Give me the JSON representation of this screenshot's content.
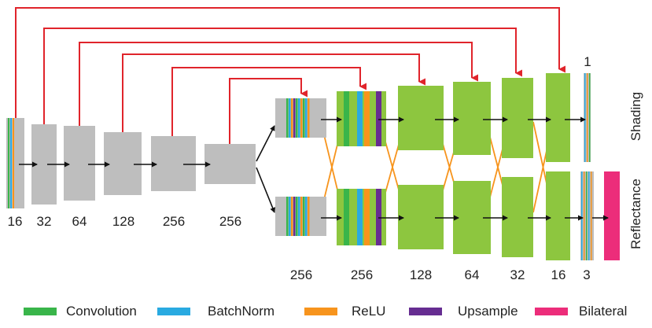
{
  "colors": {
    "encoder_block": "#bebebe",
    "decoder_block": "#8dc63f",
    "skip_arrow": "#e0242b",
    "cross_connection": "#f7941d",
    "flow_arrow": "#111111",
    "convolution": "#39b54a",
    "batchnorm": "#29aae1",
    "relu": "#f7941d",
    "upsample": "#662d91",
    "bilateral": "#ec2d7a"
  },
  "encoder_labels": [
    "16",
    "32",
    "64",
    "128",
    "256",
    "256"
  ],
  "decoder_labels": [
    "256",
    "256",
    "128",
    "64",
    "32",
    "16",
    "3"
  ],
  "shading_output_label": "1",
  "branch_labels": {
    "shading": "Shading",
    "reflectance": "Reflectance"
  },
  "legend": [
    {
      "label": "Convolution",
      "color_key": "convolution"
    },
    {
      "label": "BatchNorm",
      "color_key": "batchnorm"
    },
    {
      "label": "ReLU",
      "color_key": "relu"
    },
    {
      "label": "Upsample",
      "color_key": "upsample"
    },
    {
      "label": "Bilateral",
      "color_key": "bilateral"
    }
  ]
}
